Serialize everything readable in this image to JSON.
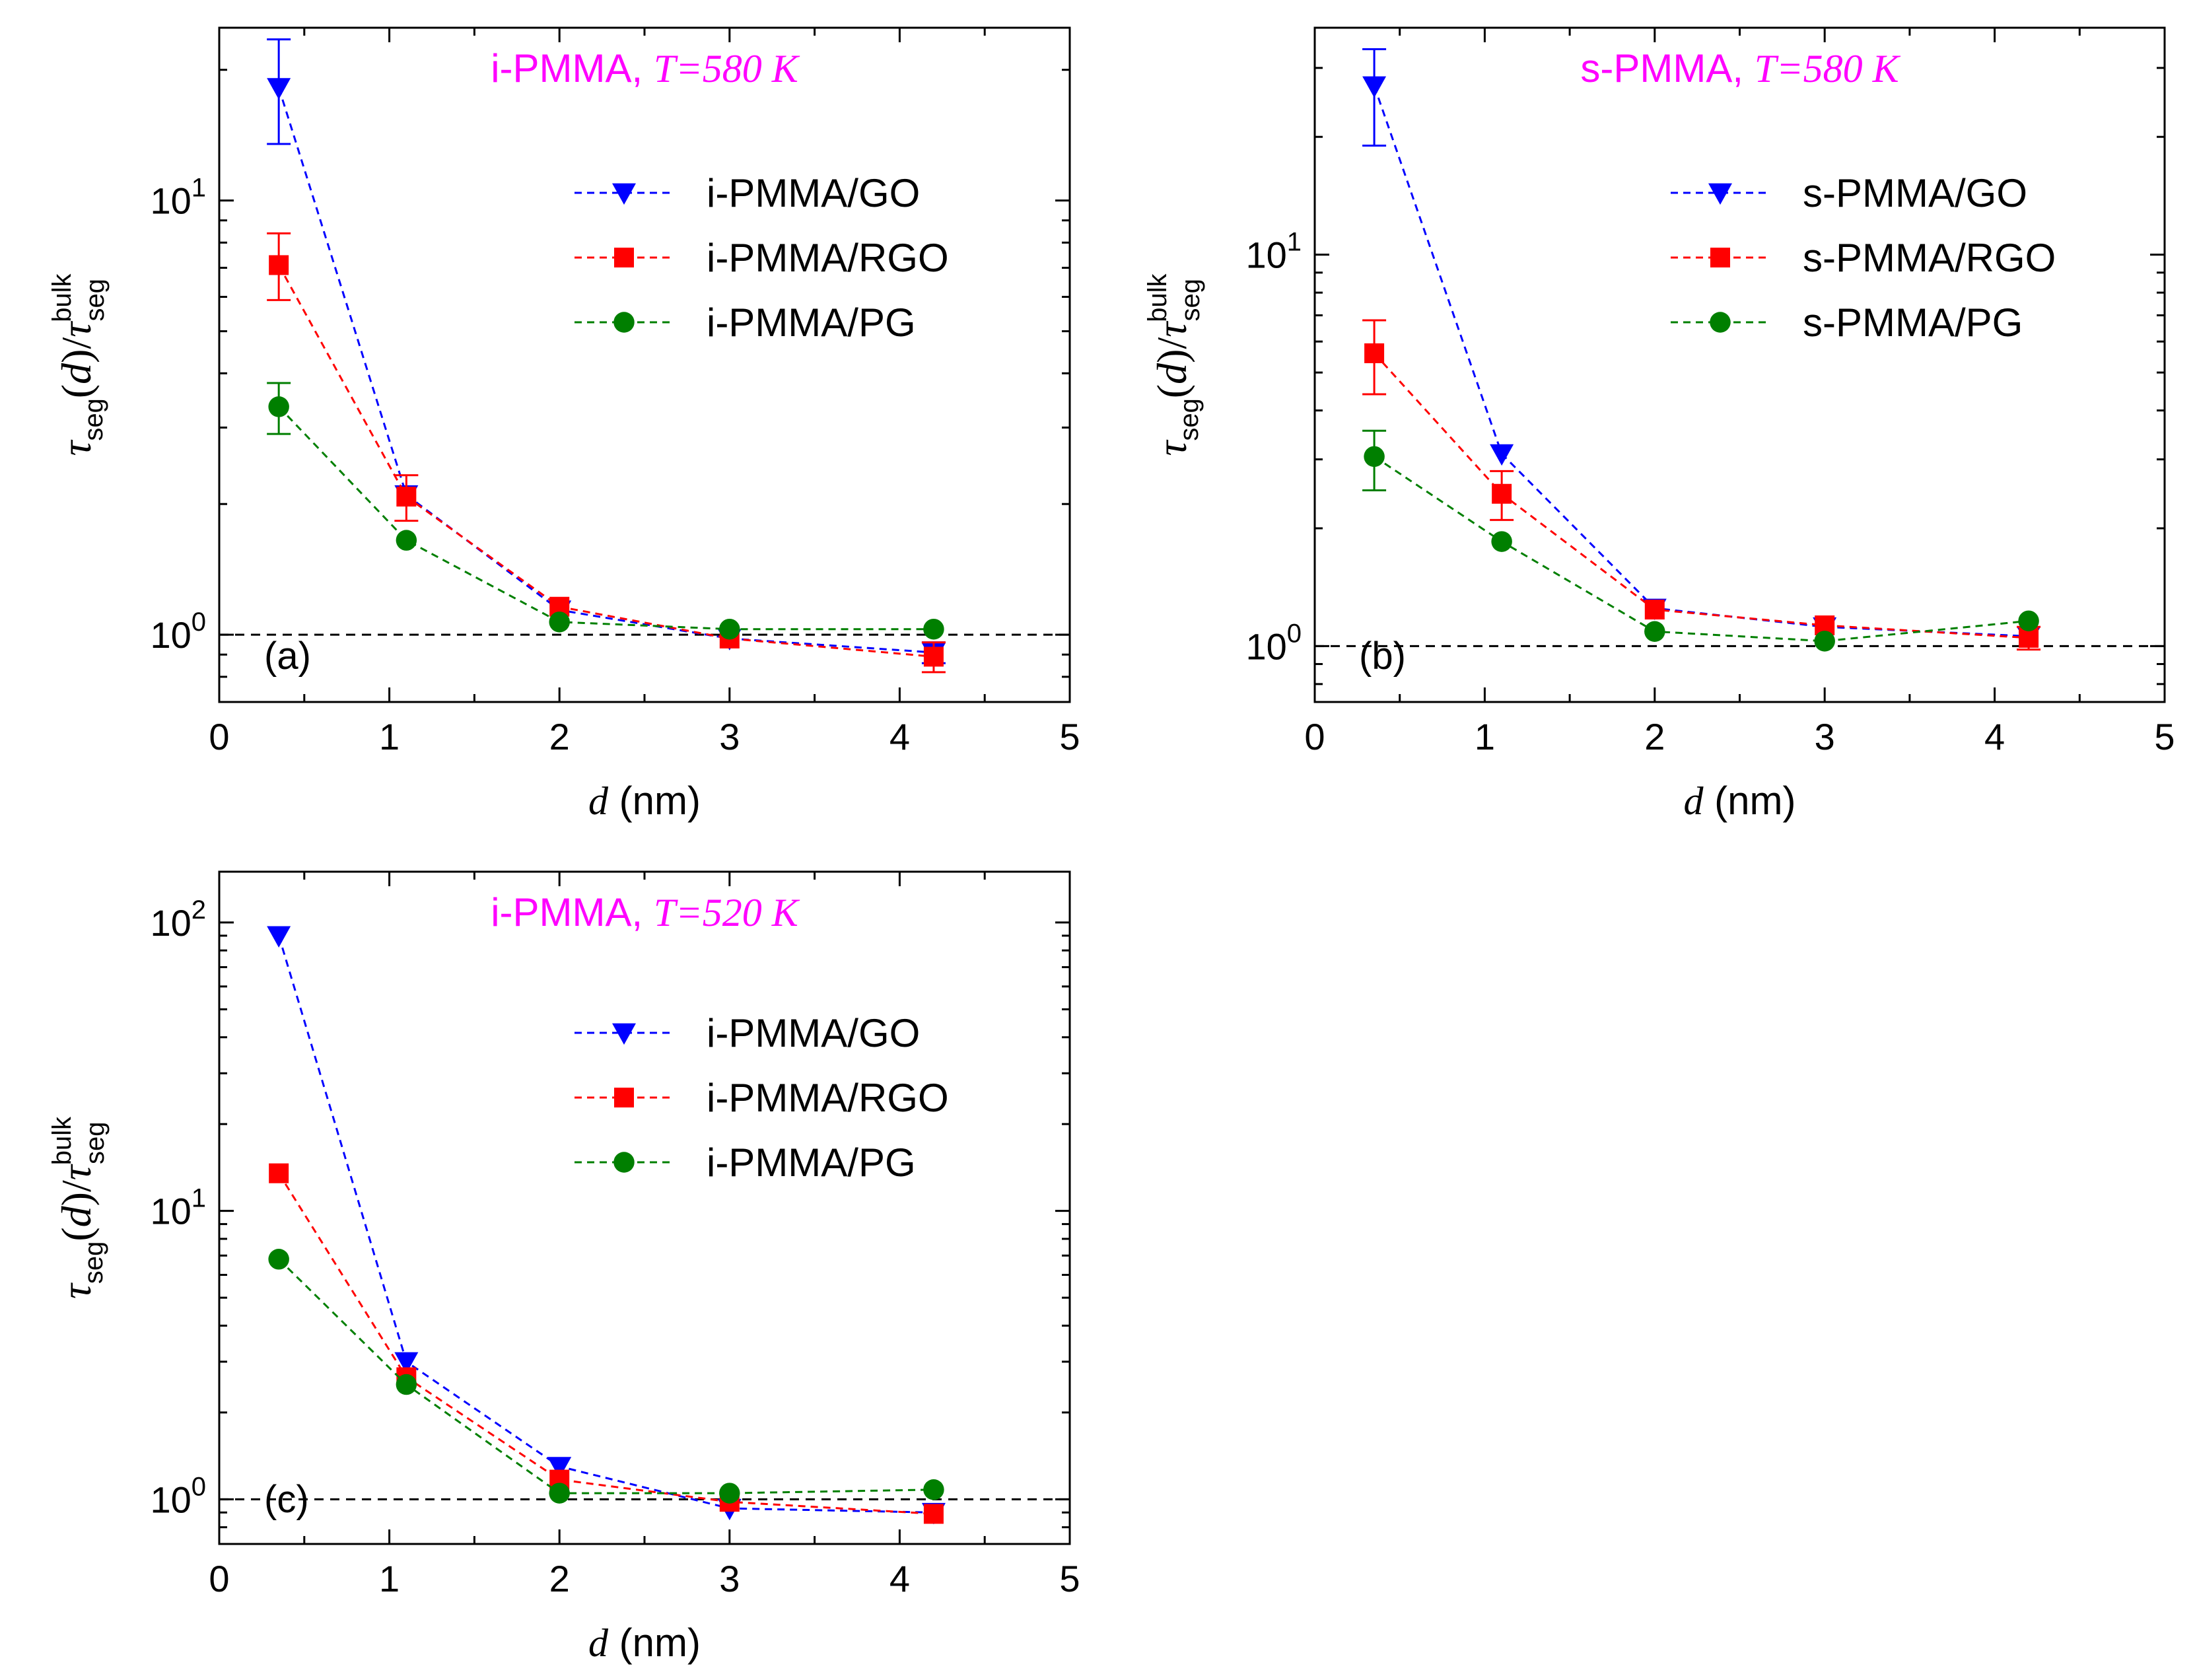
{
  "colors": {
    "GO": "#0000ff",
    "RGO": "#ff0000",
    "PG": "#007f00",
    "title": "#ff00ff",
    "axis": "#000000"
  },
  "chart_data": [
    {
      "type": "line",
      "panel_tag": "(a)",
      "title_prefix": "i-PMMA,",
      "title_var": "T",
      "title_suffix": "=580 K",
      "xlabel_var": "d",
      "xlabel_unit": " (nm)",
      "ylabel": "τseg(d)/τsegbulk",
      "ylabel_tau": "τ",
      "ylabel_seg": "seg",
      "ylabel_bulk": "bulk",
      "ylabel_d": "d",
      "xlim": [
        0,
        5
      ],
      "ylim": [
        0.7,
        25
      ],
      "yscale": "log",
      "x_ticks": [
        "0",
        "1",
        "2",
        "3",
        "4",
        "5"
      ],
      "y_ticks": [
        {
          "value": 1,
          "base": "10",
          "exp": "0"
        },
        {
          "value": 10,
          "base": "10",
          "exp": "1"
        }
      ],
      "reference_line": 1,
      "legend_position": "top-right",
      "series": [
        {
          "name": "i-PMMA/GO",
          "key": "GO",
          "marker": "triangle-down",
          "x": [
            0.35,
            1.1,
            2.0,
            3.0,
            4.2
          ],
          "y": [
            18.2,
            2.1,
            1.14,
            0.98,
            0.91
          ],
          "err_lo": [
            13.5,
            null,
            null,
            null,
            0.86
          ],
          "err_hi": [
            23.5,
            null,
            null,
            null,
            0.96
          ]
        },
        {
          "name": "i-PMMA/RGO",
          "key": "RGO",
          "marker": "square",
          "x": [
            0.35,
            1.1,
            2.0,
            3.0,
            4.2
          ],
          "y": [
            7.1,
            2.08,
            1.16,
            0.98,
            0.89
          ],
          "err_lo": [
            5.9,
            1.83,
            null,
            null,
            0.82
          ],
          "err_hi": [
            8.4,
            2.33,
            null,
            null,
            0.96
          ]
        },
        {
          "name": "i-PMMA/PG",
          "key": "PG",
          "marker": "circle",
          "x": [
            0.35,
            1.1,
            2.0,
            3.0,
            4.2
          ],
          "y": [
            3.35,
            1.65,
            1.07,
            1.03,
            1.03
          ],
          "err_lo": [
            2.9,
            null,
            null,
            null,
            null
          ],
          "err_hi": [
            3.8,
            null,
            null,
            null,
            null
          ]
        }
      ]
    },
    {
      "type": "line",
      "panel_tag": "(b)",
      "title_prefix": "s-PMMA,",
      "title_var": "T",
      "title_suffix": "=580 K",
      "xlabel_var": "d",
      "xlabel_unit": " (nm)",
      "ylabel": "τseg(d)/τsegbulk",
      "ylabel_tau": "τ",
      "ylabel_seg": "seg",
      "ylabel_bulk": "bulk",
      "ylabel_d": "d",
      "xlim": [
        0,
        5
      ],
      "ylim": [
        0.72,
        38
      ],
      "yscale": "log",
      "x_ticks": [
        "0",
        "1",
        "2",
        "3",
        "4",
        "5"
      ],
      "y_ticks": [
        {
          "value": 1,
          "base": "10",
          "exp": "0"
        },
        {
          "value": 10,
          "base": "10",
          "exp": "1"
        }
      ],
      "reference_line": 1,
      "legend_position": "top-right",
      "series": [
        {
          "name": "s-PMMA/GO",
          "key": "GO",
          "marker": "triangle-down",
          "x": [
            0.35,
            1.1,
            2.0,
            3.0,
            4.2
          ],
          "y": [
            27.0,
            3.1,
            1.25,
            1.12,
            1.06
          ],
          "err_lo": [
            19.0,
            null,
            null,
            null,
            null
          ],
          "err_hi": [
            33.5,
            null,
            null,
            null,
            null
          ]
        },
        {
          "name": "s-PMMA/RGO",
          "key": "RGO",
          "marker": "square",
          "x": [
            0.35,
            1.1,
            2.0,
            3.0,
            4.2
          ],
          "y": [
            5.6,
            2.45,
            1.24,
            1.13,
            1.05
          ],
          "err_lo": [
            4.4,
            2.1,
            null,
            null,
            0.98
          ],
          "err_hi": [
            6.8,
            2.8,
            null,
            null,
            1.12
          ]
        },
        {
          "name": "s-PMMA/PG",
          "key": "PG",
          "marker": "circle",
          "x": [
            0.35,
            1.1,
            2.0,
            3.0,
            4.2
          ],
          "y": [
            3.05,
            1.85,
            1.09,
            1.03,
            1.16
          ],
          "err_lo": [
            2.5,
            null,
            null,
            null,
            null
          ],
          "err_hi": [
            3.55,
            null,
            null,
            null,
            null
          ]
        }
      ]
    },
    {
      "type": "line",
      "panel_tag": "(c)",
      "title_prefix": "i-PMMA,",
      "title_var": "T",
      "title_suffix": "=520 K",
      "xlabel_var": "d",
      "xlabel_unit": " (nm)",
      "ylabel": "τseg(d)/τsegbulk",
      "ylabel_tau": "τ",
      "ylabel_seg": "seg",
      "ylabel_bulk": "bulk",
      "ylabel_d": "d",
      "xlim": [
        0,
        5
      ],
      "ylim": [
        0.7,
        150
      ],
      "yscale": "log",
      "x_ticks": [
        "0",
        "1",
        "2",
        "3",
        "4",
        "5"
      ],
      "y_ticks": [
        {
          "value": 1,
          "base": "10",
          "exp": "0"
        },
        {
          "value": 10,
          "base": "10",
          "exp": "1"
        },
        {
          "value": 100,
          "base": "10",
          "exp": "2"
        }
      ],
      "reference_line": 1,
      "legend_position": "top-right",
      "series": [
        {
          "name": "i-PMMA/GO",
          "key": "GO",
          "marker": "triangle-down",
          "x": [
            0.35,
            1.1,
            2.0,
            3.0,
            4.2
          ],
          "y": [
            90,
            3.0,
            1.3,
            0.93,
            0.9
          ],
          "err_lo": [
            null,
            null,
            null,
            null,
            null
          ],
          "err_hi": [
            null,
            null,
            null,
            null,
            null
          ]
        },
        {
          "name": "i-PMMA/RGO",
          "key": "RGO",
          "marker": "square",
          "x": [
            0.35,
            1.1,
            2.0,
            3.0,
            4.2
          ],
          "y": [
            13.5,
            2.65,
            1.17,
            0.98,
            0.89
          ],
          "err_lo": [
            null,
            null,
            null,
            null,
            null
          ],
          "err_hi": [
            null,
            null,
            null,
            null,
            null
          ]
        },
        {
          "name": "i-PMMA/PG",
          "key": "PG",
          "marker": "circle",
          "x": [
            0.35,
            1.1,
            2.0,
            3.0,
            4.2
          ],
          "y": [
            6.8,
            2.5,
            1.05,
            1.05,
            1.08
          ],
          "err_lo": [
            null,
            null,
            null,
            null,
            null
          ],
          "err_hi": [
            null,
            null,
            null,
            null,
            null
          ]
        }
      ]
    }
  ]
}
